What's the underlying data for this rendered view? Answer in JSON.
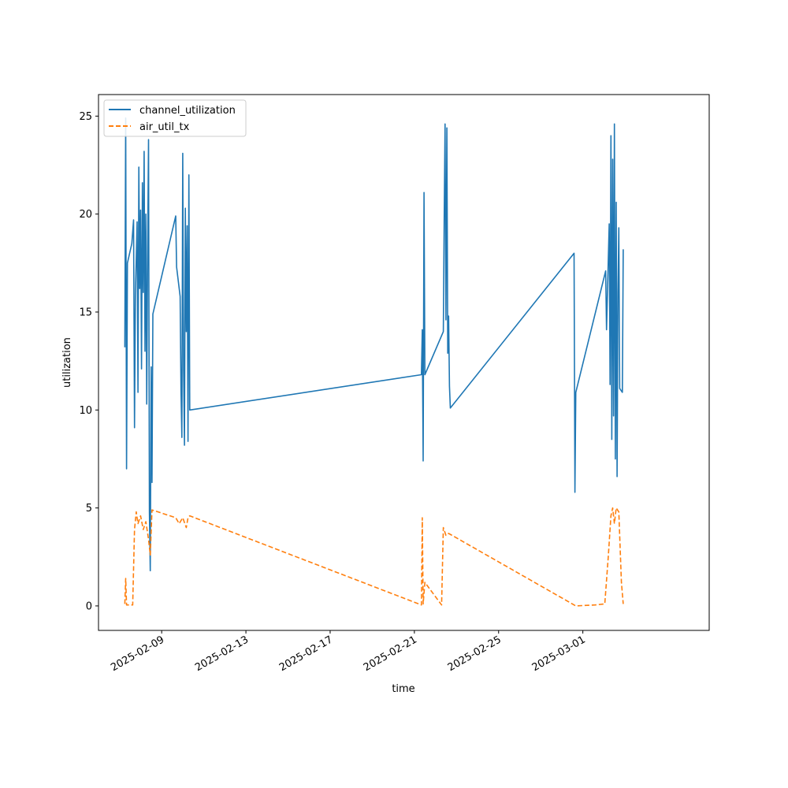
{
  "chart_data": {
    "type": "line",
    "xlabel": "time",
    "ylabel": "utilization",
    "xlim": [
      "2025-02-06T00:00",
      "2025-03-07T00:00"
    ],
    "ylim": [
      -1.25,
      26.1
    ],
    "x_ticks": [
      "2025-02-09",
      "2025-02-13",
      "2025-02-17",
      "2025-02-21",
      "2025-02-25",
      "2025-03-01"
    ],
    "y_ticks": [
      0,
      5,
      10,
      15,
      20,
      25
    ],
    "legend_position": "top-left",
    "grid": false,
    "series": [
      {
        "name": "channel_utilization",
        "color": "#1f77b4",
        "style": "solid",
        "points": [
          [
            "2025-02-07T06:00",
            13.2
          ],
          [
            "2025-02-07T07:00",
            24.9
          ],
          [
            "2025-02-07T08:00",
            7.0
          ],
          [
            "2025-02-07T09:00",
            17.5
          ],
          [
            "2025-02-07T14:00",
            18.5
          ],
          [
            "2025-02-07T16:00",
            19.7
          ],
          [
            "2025-02-07T17:00",
            9.1
          ],
          [
            "2025-02-07T18:00",
            15.8
          ],
          [
            "2025-02-07T20:00",
            19.6
          ],
          [
            "2025-02-07T21:00",
            10.9
          ],
          [
            "2025-02-07T22:00",
            22.4
          ],
          [
            "2025-02-07T23:00",
            16.2
          ],
          [
            "2025-02-08T00:00",
            20.2
          ],
          [
            "2025-02-08T01:00",
            12.1
          ],
          [
            "2025-02-08T02:00",
            21.6
          ],
          [
            "2025-02-08T03:00",
            16.0
          ],
          [
            "2025-02-08T04:00",
            23.2
          ],
          [
            "2025-02-08T05:00",
            13.0
          ],
          [
            "2025-02-08T06:00",
            20.0
          ],
          [
            "2025-02-08T07:00",
            10.3
          ],
          [
            "2025-02-08T08:00",
            18.3
          ],
          [
            "2025-02-08T09:00",
            23.8
          ],
          [
            "2025-02-08T10:00",
            4.8
          ],
          [
            "2025-02-08T11:00",
            1.8
          ],
          [
            "2025-02-08T12:00",
            12.2
          ],
          [
            "2025-02-08T13:00",
            6.3
          ],
          [
            "2025-02-08T14:00",
            14.9
          ],
          [
            "2025-02-09T16:00",
            19.9
          ],
          [
            "2025-02-09T17:00",
            17.3
          ],
          [
            "2025-02-09T21:00",
            15.8
          ],
          [
            "2025-02-09T22:00",
            11.0
          ],
          [
            "2025-02-09T23:00",
            8.6
          ],
          [
            "2025-02-10T00:00",
            23.1
          ],
          [
            "2025-02-10T01:00",
            12.0
          ],
          [
            "2025-02-10T02:00",
            8.2
          ],
          [
            "2025-02-10T03:00",
            20.3
          ],
          [
            "2025-02-10T04:00",
            14.0
          ],
          [
            "2025-02-10T05:00",
            19.4
          ],
          [
            "2025-02-10T06:00",
            8.4
          ],
          [
            "2025-02-10T07:00",
            22.0
          ],
          [
            "2025-02-10T08:00",
            10.0
          ],
          [
            "2025-02-21T08:00",
            11.8
          ],
          [
            "2025-02-21T09:00",
            14.1
          ],
          [
            "2025-02-21T10:00",
            7.4
          ],
          [
            "2025-02-21T11:00",
            21.1
          ],
          [
            "2025-02-21T12:00",
            11.8
          ],
          [
            "2025-02-22T09:00",
            14.0
          ],
          [
            "2025-02-22T10:00",
            19.8
          ],
          [
            "2025-02-22T11:00",
            24.6
          ],
          [
            "2025-02-22T12:00",
            14.6
          ],
          [
            "2025-02-22T13:00",
            24.4
          ],
          [
            "2025-02-22T14:00",
            12.9
          ],
          [
            "2025-02-22T15:00",
            14.8
          ],
          [
            "2025-02-22T16:00",
            11.2
          ],
          [
            "2025-02-22T17:00",
            10.1
          ],
          [
            "2025-02-28T14:00",
            18.0
          ],
          [
            "2025-02-28T15:00",
            5.8
          ],
          [
            "2025-02-28T16:00",
            10.9
          ],
          [
            "2025-03-02T02:00",
            17.1
          ],
          [
            "2025-03-02T03:00",
            14.1
          ],
          [
            "2025-03-02T06:00",
            19.5
          ],
          [
            "2025-03-02T07:00",
            11.3
          ],
          [
            "2025-03-02T08:00",
            24.0
          ],
          [
            "2025-03-02T09:00",
            8.5
          ],
          [
            "2025-03-02T10:00",
            22.8
          ],
          [
            "2025-03-02T11:00",
            9.7
          ],
          [
            "2025-03-02T12:00",
            24.6
          ],
          [
            "2025-03-02T13:00",
            7.5
          ],
          [
            "2025-03-02T14:00",
            20.6
          ],
          [
            "2025-03-02T15:00",
            6.6
          ],
          [
            "2025-03-02T16:00",
            16.0
          ],
          [
            "2025-03-02T17:00",
            19.3
          ],
          [
            "2025-03-02T18:00",
            11.1
          ],
          [
            "2025-03-02T21:00",
            10.9
          ],
          [
            "2025-03-02T22:00",
            18.2
          ]
        ]
      },
      {
        "name": "air_util_tx",
        "color": "#ff7f0e",
        "style": "dashed",
        "points": [
          [
            "2025-02-07T06:00",
            0.1
          ],
          [
            "2025-02-07T07:00",
            1.4
          ],
          [
            "2025-02-07T08:00",
            0.05
          ],
          [
            "2025-02-07T15:00",
            0.05
          ],
          [
            "2025-02-07T17:00",
            3.9
          ],
          [
            "2025-02-07T19:00",
            4.8
          ],
          [
            "2025-02-07T21:00",
            4.2
          ],
          [
            "2025-02-08T00:00",
            4.6
          ],
          [
            "2025-02-08T03:00",
            3.9
          ],
          [
            "2025-02-08T06:00",
            4.3
          ],
          [
            "2025-02-08T09:00",
            3.4
          ],
          [
            "2025-02-08T11:00",
            2.6
          ],
          [
            "2025-02-08T13:00",
            4.9
          ],
          [
            "2025-02-09T16:00",
            4.5
          ],
          [
            "2025-02-09T20:00",
            4.2
          ],
          [
            "2025-02-10T00:00",
            4.5
          ],
          [
            "2025-02-10T04:00",
            4.0
          ],
          [
            "2025-02-10T06:00",
            4.5
          ],
          [
            "2025-02-10T08:00",
            4.6
          ],
          [
            "2025-02-21T08:00",
            0.05
          ],
          [
            "2025-02-21T09:00",
            4.5
          ],
          [
            "2025-02-21T10:00",
            0.1
          ],
          [
            "2025-02-21T12:00",
            1.2
          ],
          [
            "2025-02-22T07:00",
            0.05
          ],
          [
            "2025-02-22T09:00",
            4.0
          ],
          [
            "2025-02-22T12:00",
            3.6
          ],
          [
            "2025-02-22T15:00",
            3.7
          ],
          [
            "2025-02-28T16:00",
            0.0
          ],
          [
            "2025-03-01T14:00",
            0.05
          ],
          [
            "2025-03-02T01:00",
            0.1
          ],
          [
            "2025-03-02T05:00",
            2.5
          ],
          [
            "2025-03-02T08:00",
            4.6
          ],
          [
            "2025-03-02T10:00",
            5.0
          ],
          [
            "2025-03-02T12:00",
            4.2
          ],
          [
            "2025-03-02T14:00",
            5.0
          ],
          [
            "2025-03-02T17:00",
            4.8
          ],
          [
            "2025-03-02T20:00",
            1.2
          ],
          [
            "2025-03-02T22:00",
            0.1
          ]
        ]
      }
    ]
  }
}
